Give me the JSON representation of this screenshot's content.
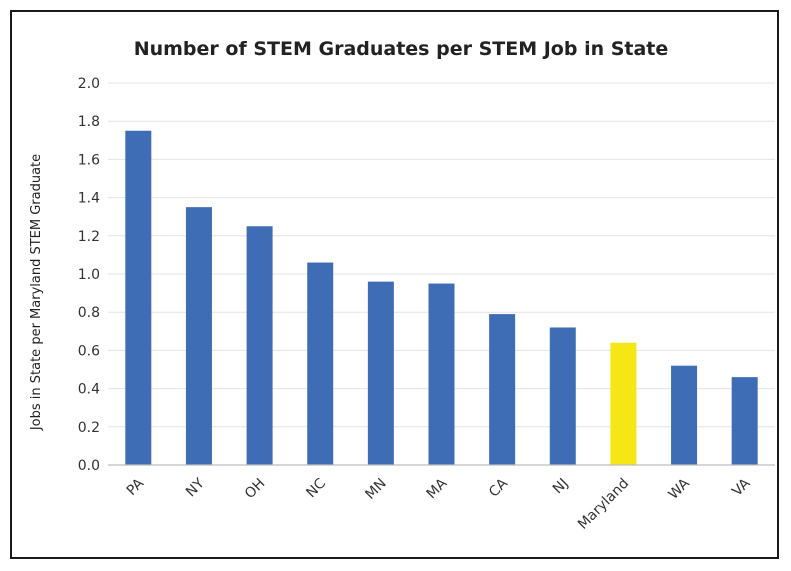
{
  "chart_data": {
    "type": "bar",
    "title": "Number of STEM Graduates per STEM Job in State",
    "xlabel": "",
    "ylabel": "Jobs in State per Maryland STEM Graduate",
    "ylim": [
      0,
      2.0
    ],
    "yticks": [
      "0.0",
      "0.2",
      "0.4",
      "0.6",
      "0.8",
      "1.0",
      "1.2",
      "1.4",
      "1.6",
      "1.8",
      "2.0"
    ],
    "grid": true,
    "legend": "none",
    "categories": [
      "PA",
      "NY",
      "OH",
      "NC",
      "MN",
      "MA",
      "CA",
      "NJ",
      "Maryland",
      "WA",
      "VA"
    ],
    "values": [
      1.75,
      1.35,
      1.25,
      1.06,
      0.96,
      0.95,
      0.79,
      0.72,
      0.64,
      0.52,
      0.46
    ],
    "bar_color": "#3e6db5",
    "highlight_color": "#f5e615",
    "highlight_category": "Maryland"
  }
}
